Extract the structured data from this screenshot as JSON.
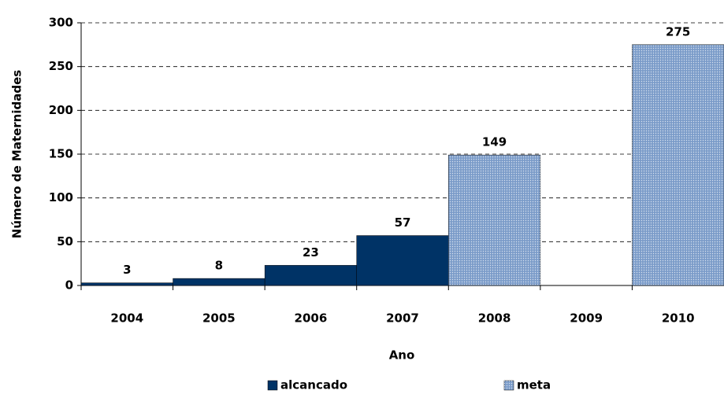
{
  "chart_data": {
    "type": "bar",
    "categories": [
      "2004",
      "2005",
      "2006",
      "2007",
      "2008",
      "2009",
      "2010"
    ],
    "series": [
      {
        "name": "alcancado",
        "color": "#003366",
        "values": [
          3,
          8,
          23,
          57,
          null,
          null,
          null
        ]
      },
      {
        "name": "meta",
        "color": "#7b9cc9",
        "values": [
          null,
          null,
          null,
          null,
          149,
          null,
          275
        ]
      }
    ],
    "y_label": "Número de Maternidades",
    "x_label": "Ano",
    "ylim": [
      0,
      300
    ],
    "yticks": [
      0,
      50,
      100,
      150,
      200,
      250,
      300
    ],
    "grid": true,
    "legend": "bottom"
  }
}
